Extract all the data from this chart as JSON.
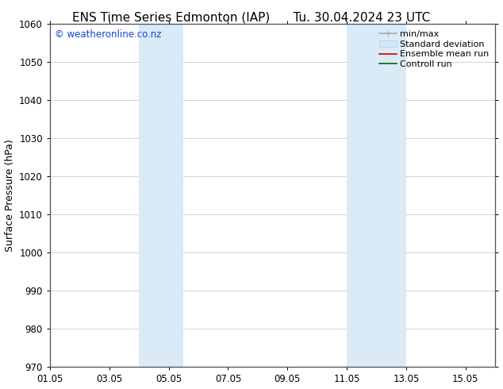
{
  "title_left": "ENS Time Series Edmonton (IAP)",
  "title_right": "Tu. 30.04.2024 23 UTC",
  "ylabel": "Surface Pressure (hPa)",
  "xlabel": "",
  "ylim": [
    970,
    1060
  ],
  "yticks": [
    970,
    980,
    990,
    1000,
    1010,
    1020,
    1030,
    1040,
    1050,
    1060
  ],
  "xtick_labels": [
    "01.05",
    "03.05",
    "05.05",
    "07.05",
    "09.05",
    "11.05",
    "13.05",
    "15.05"
  ],
  "xtick_positions": [
    1.0,
    3.0,
    5.0,
    7.0,
    9.0,
    11.0,
    13.0,
    15.0
  ],
  "xmin": 1.0,
  "xmax": 16.0,
  "shaded_regions": [
    {
      "xmin": 4.0,
      "xmax": 5.5,
      "color": "#daeaf7"
    },
    {
      "xmin": 11.0,
      "xmax": 13.0,
      "color": "#daeaf7"
    }
  ],
  "watermark": "© weatheronline.co.nz",
  "watermark_color": "#1144cc",
  "bg_color": "#ffffff",
  "plot_bg_color": "#ffffff",
  "grid_color": "#cccccc",
  "tick_color": "#000000",
  "font_color": "#000000",
  "title_fontsize": 11,
  "label_fontsize": 9,
  "tick_fontsize": 8.5,
  "watermark_fontsize": 8.5,
  "legend_fontsize": 8
}
